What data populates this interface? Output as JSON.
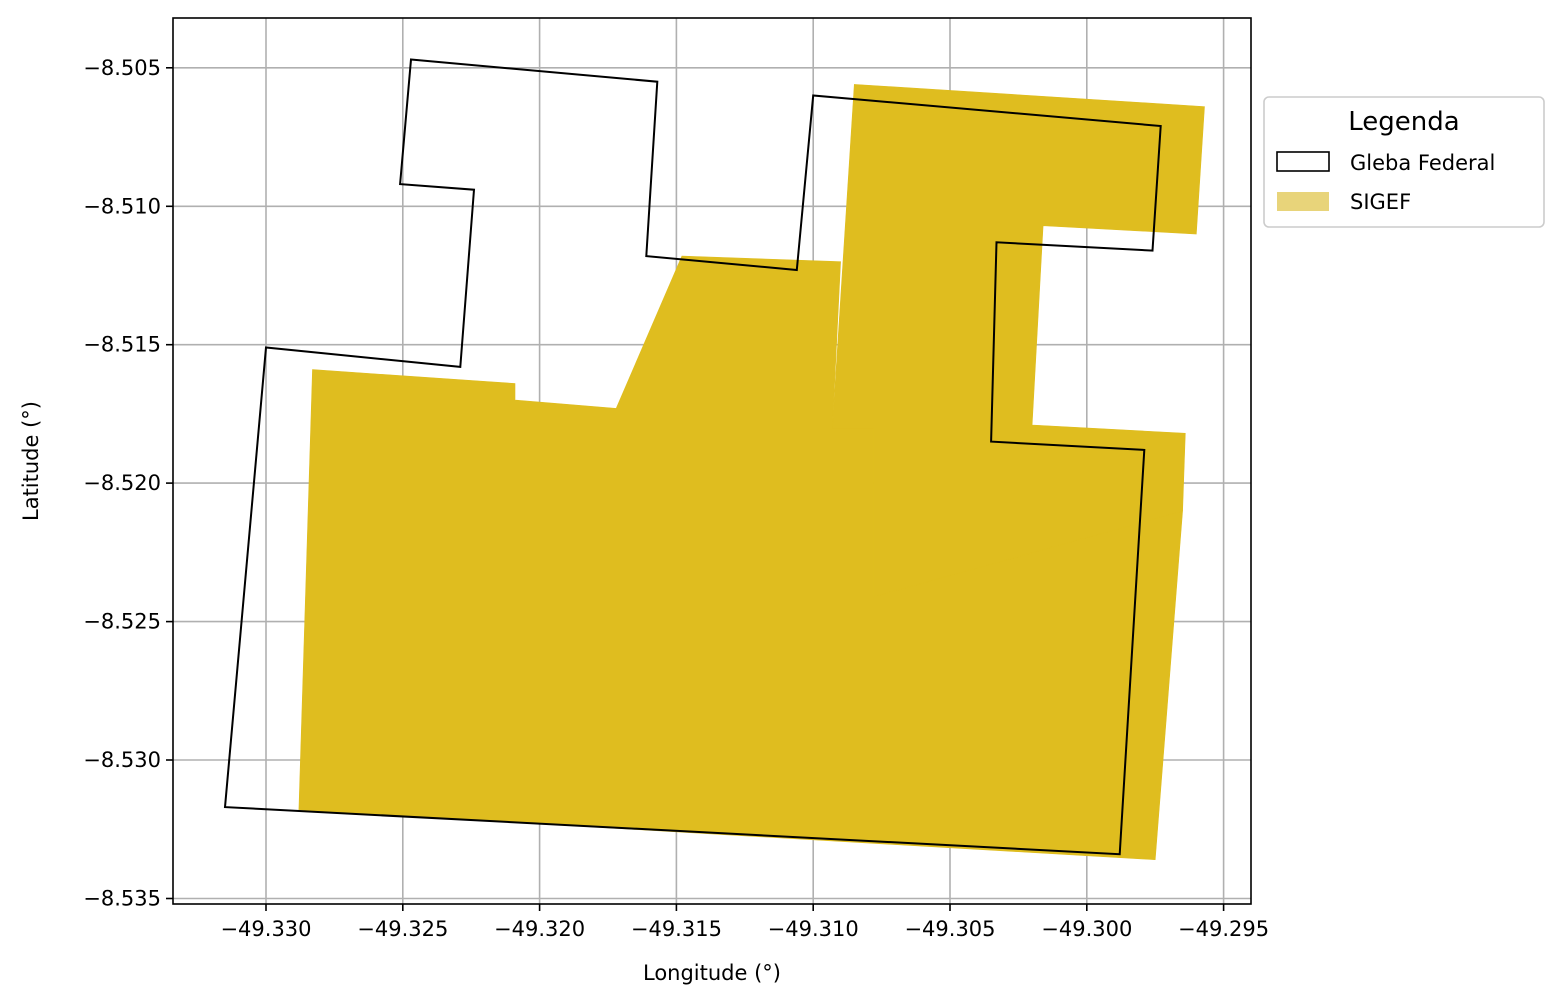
{
  "chart_data": {
    "type": "map",
    "xlabel": "Longitude (°)",
    "ylabel": "Latitude (°)",
    "xlim": [
      -49.3334,
      -49.294
    ],
    "ylim": [
      -8.5352,
      -8.5032
    ],
    "xticks": [
      -49.33,
      -49.325,
      -49.32,
      -49.315,
      -49.31,
      -49.305,
      -49.3,
      -49.295
    ],
    "xtick_labels": [
      "−49.330",
      "−49.325",
      "−49.320",
      "−49.315",
      "−49.310",
      "−49.305",
      "−49.300",
      "−49.295"
    ],
    "yticks": [
      -8.505,
      -8.51,
      -8.515,
      -8.52,
      -8.525,
      -8.53,
      -8.535
    ],
    "ytick_labels": [
      "−8.505",
      "−8.510",
      "−8.515",
      "−8.520",
      "−8.525",
      "−8.530",
      "−8.535"
    ],
    "grid": true,
    "legend": {
      "title": "Legenda",
      "placement": "outside-upper-right",
      "entries": [
        {
          "label": "Gleba Federal",
          "style": "outline",
          "color": "#000000"
        },
        {
          "label": "SIGEF",
          "style": "fill",
          "color": "#e8d47a"
        }
      ]
    },
    "layers": [
      {
        "name": "SIGEF",
        "style": "fill",
        "color": "#dfbd1f",
        "polygons": [
          [
            [
              -49.3283,
              -8.5159
            ],
            [
              -49.3209,
              -8.5164
            ],
            [
              -49.3209,
              -8.517
            ],
            [
              -49.3172,
              -8.5173
            ],
            [
              -49.3148,
              -8.5118
            ],
            [
              -49.309,
              -8.512
            ],
            [
              -49.3093,
              -8.518
            ],
            [
              -49.3078,
              -8.518
            ],
            [
              -49.3078,
              -8.5241
            ],
            [
              -49.2965,
              -8.521
            ],
            [
              -49.2975,
              -8.5336
            ],
            [
              -49.3288,
              -8.5318
            ]
          ],
          [
            [
              -49.3085,
              -8.5056
            ],
            [
              -49.2957,
              -8.5064
            ],
            [
              -49.296,
              -8.511
            ],
            [
              -49.3016,
              -8.5107
            ],
            [
              -49.302,
              -8.5179
            ],
            [
              -49.2964,
              -8.5182
            ],
            [
              -49.2965,
              -8.521
            ],
            [
              -49.3078,
              -8.5241
            ],
            [
              -49.3078,
              -8.518
            ],
            [
              -49.3093,
              -8.518
            ]
          ]
        ]
      },
      {
        "name": "Gleba Federal",
        "style": "outline",
        "color": "#000000",
        "polygons": [
          [
            [
              -49.3247,
              -8.5047
            ],
            [
              -49.3157,
              -8.5055
            ],
            [
              -49.3161,
              -8.5118
            ],
            [
              -49.3106,
              -8.5123
            ],
            [
              -49.31,
              -8.506
            ],
            [
              -49.2973,
              -8.5071
            ],
            [
              -49.2976,
              -8.5116
            ],
            [
              -49.3033,
              -8.5113
            ],
            [
              -49.3035,
              -8.5185
            ],
            [
              -49.2979,
              -8.5188
            ],
            [
              -49.2988,
              -8.5334
            ],
            [
              -49.3315,
              -8.5317
            ],
            [
              -49.33,
              -8.5151
            ],
            [
              -49.3229,
              -8.5158
            ],
            [
              -49.3224,
              -8.5094
            ],
            [
              -49.3251,
              -8.5092
            ]
          ]
        ]
      }
    ]
  }
}
